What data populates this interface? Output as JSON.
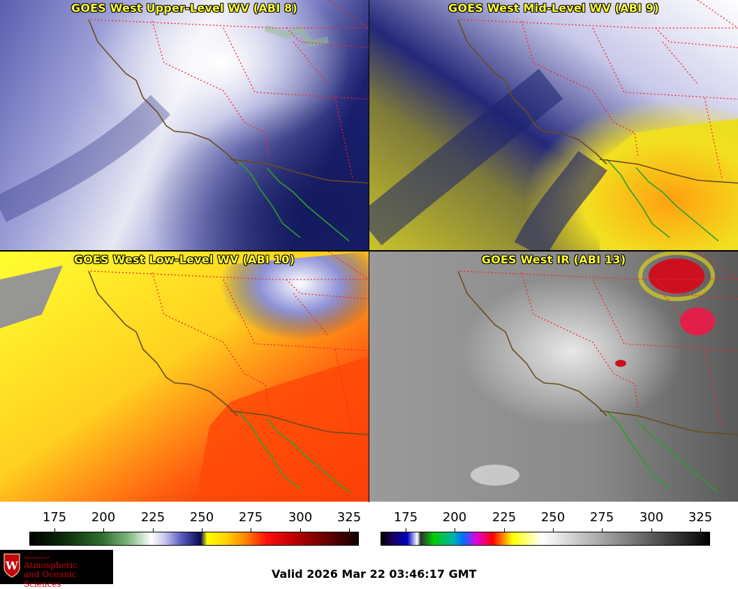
{
  "panels": [
    {
      "title": "GOES West Upper-Level WV (ABI 8)"
    },
    {
      "title": "GOES West Mid-Level WV (ABI 9)"
    },
    {
      "title": "GOES West Low-Level WV (ABI 10)"
    },
    {
      "title": "GOES West IR (ABI 13)"
    }
  ],
  "colorbars": {
    "wv": {
      "ticks": [
        "175",
        "200",
        "225",
        "250",
        "275",
        "300",
        "325"
      ]
    },
    "ir": {
      "ticks": [
        "175",
        "200",
        "225",
        "250",
        "275",
        "300",
        "325"
      ]
    }
  },
  "logo": {
    "dept": "Department of",
    "line1": "Atmospheric",
    "line2": "and Oceanic Sciences",
    "seal_letter": "W"
  },
  "valid_time": "Valid 2026 Mar 22 03:46:17 GMT",
  "colors": {
    "coastline": "#6b4a1e",
    "state_borders": "#ff2020",
    "mexico_coast": "#2aa02a"
  }
}
